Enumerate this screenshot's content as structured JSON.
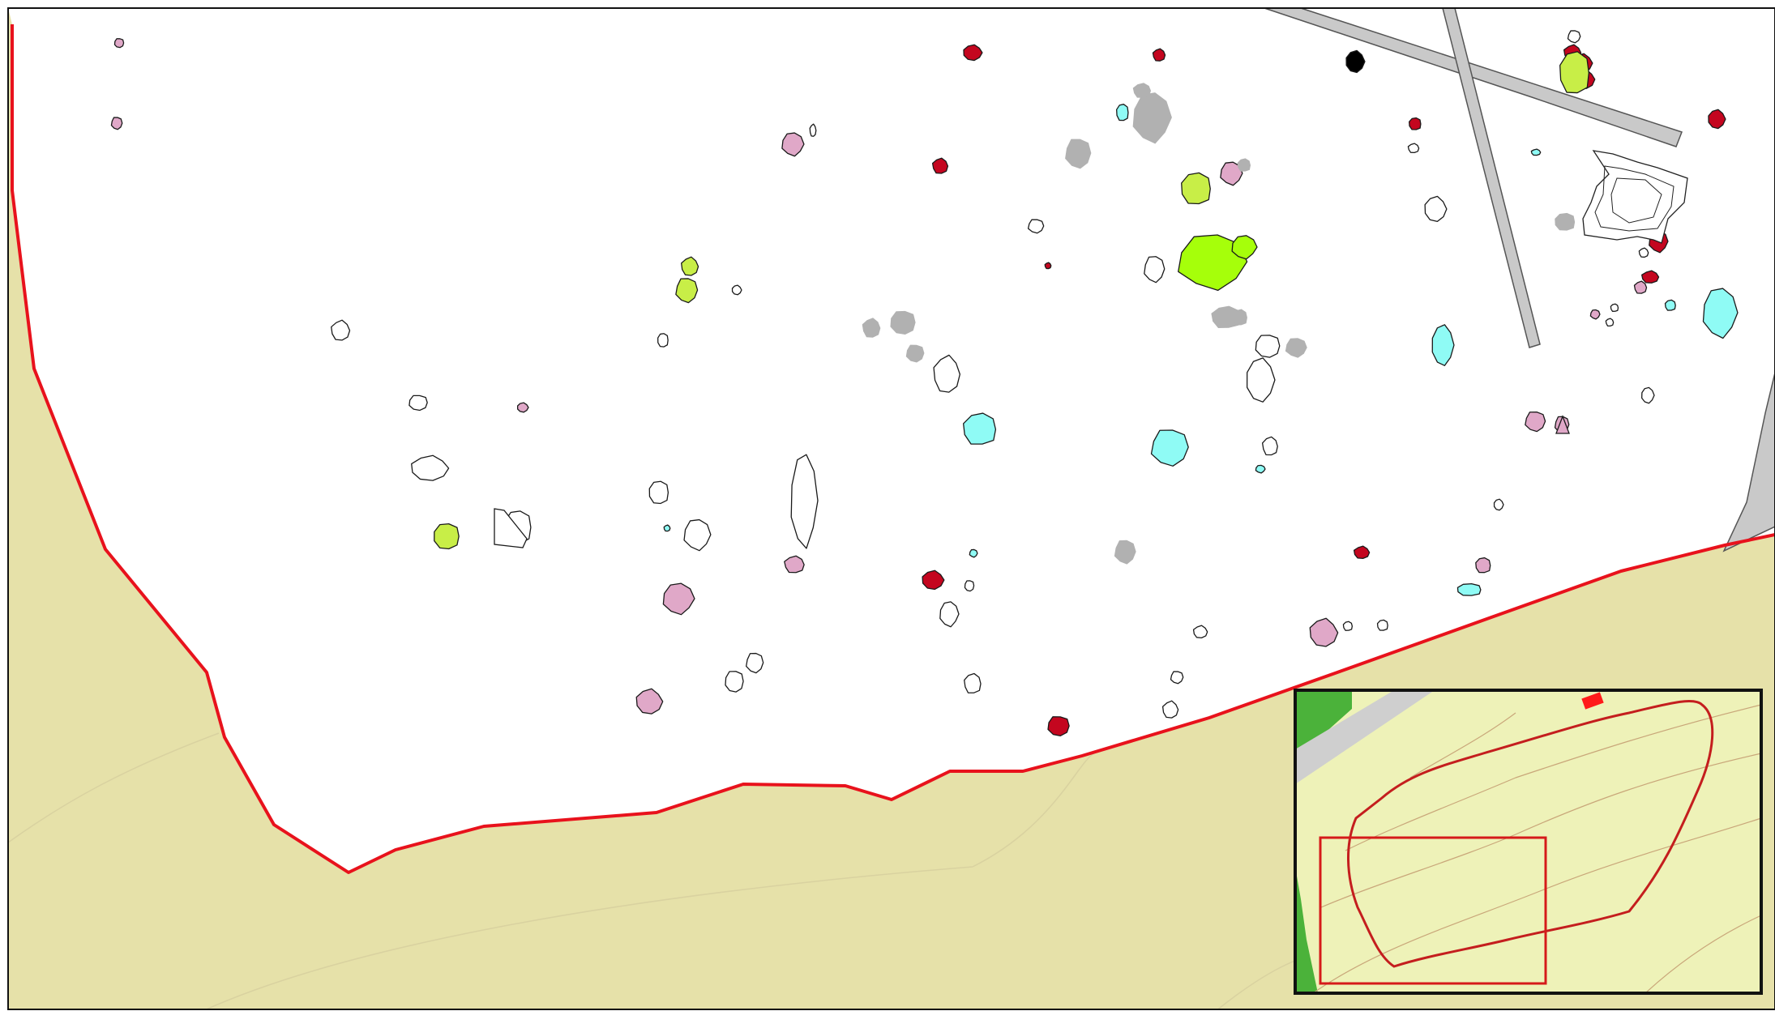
{
  "map": {
    "colors": {
      "background": "#ffffff",
      "terrain": "#e6e1a9",
      "boundary": "#e8121c",
      "dark_red": "#c4061f",
      "pink": "#e0a8c8",
      "lime": "#c8ee47",
      "bright_lime": "#a6ff0a",
      "cyan": "#8ffbf5",
      "gray": "#b1b1b1",
      "road": "#c9c9c9",
      "black": "#000000"
    },
    "legend_counts": {
      "dark_red_features": 18,
      "pink_features": 19,
      "lime_features": 6,
      "cyan_features": 11,
      "gray_features": 13
    }
  },
  "inset": {
    "colors": {
      "fill": "#eef2b8",
      "green": "#4bb23a",
      "road": "#cfcfcf",
      "outline": "#c41e1e",
      "frame": "#d51a1a",
      "contour": "#c9a77a"
    }
  }
}
